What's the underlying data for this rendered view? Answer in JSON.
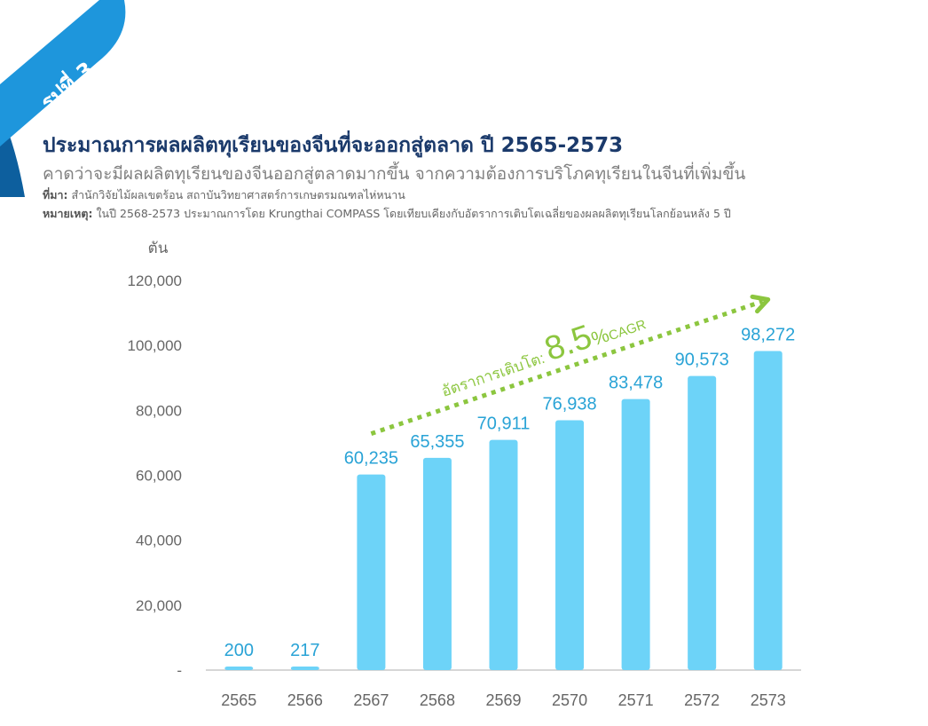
{
  "badge": {
    "text": "รูปที่ 3",
    "color": "#1e96dc"
  },
  "title": "ประมาณการผลผลิตทุเรียนของจีนที่จะออกสู่ตลาด ปี 2565-2573",
  "subtitle": "คาดว่าจะมีผลผลิตทุเรียนของจีนออกสู่ตลาดมากขึ้น จากความต้องการบริโภคทุเรียนในจีนที่เพิ่มขึ้น",
  "source": {
    "label": "ที่มา:",
    "text": "สำนักวิจัยไม้ผลเขตร้อน สถาบันวิทยาศาสตร์การเกษตรมณฑลไห่หนาน"
  },
  "remark": {
    "label": "หมายเหตุ:",
    "text": "ในปี 2568-2573 ประมาณการโดย Krungthai COMPASS โดยเทียบเคียงกับอัตราการเติบโตเฉลี่ยของผลผลิตทุเรียนโลกย้อนหลัง 5 ปี"
  },
  "chart_data": {
    "type": "bar",
    "ylabel": "ตัน",
    "ylim": [
      0,
      120000
    ],
    "yticks": [
      0,
      20000,
      40000,
      60000,
      80000,
      100000,
      120000
    ],
    "ytick_labels": [
      "-",
      "20,000",
      "40,000",
      "60,000",
      "80,000",
      "100,000",
      "120,000"
    ],
    "categories": [
      "2565",
      "2566",
      "2567",
      "2568",
      "2569",
      "2570",
      "2571",
      "2572",
      "2573"
    ],
    "values": [
      200,
      217,
      60235,
      65355,
      70911,
      76938,
      83478,
      90573,
      98272
    ],
    "value_labels": [
      "200",
      "217",
      "60,235",
      "65,355",
      "70,911",
      "76,938",
      "83,478",
      "90,573",
      "98,272"
    ],
    "grid": false,
    "bar_color": "#6dd3f8",
    "label_color": "#29a3d6",
    "annotation": {
      "prefix": "อัตราการเติบโต:",
      "value": "8.5",
      "unit": "%",
      "suffix": "CAGR",
      "from_category": "2567",
      "to_category": "2573",
      "color": "#8cc63f"
    }
  }
}
